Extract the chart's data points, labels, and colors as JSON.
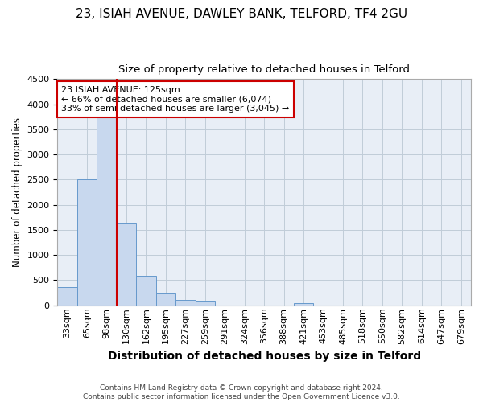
{
  "title1": "23, ISIAH AVENUE, DAWLEY BANK, TELFORD, TF4 2GU",
  "title2": "Size of property relative to detached houses in Telford",
  "xlabel": "Distribution of detached houses by size in Telford",
  "ylabel": "Number of detached properties",
  "categories": [
    "33sqm",
    "65sqm",
    "98sqm",
    "130sqm",
    "162sqm",
    "195sqm",
    "227sqm",
    "259sqm",
    "291sqm",
    "324sqm",
    "356sqm",
    "388sqm",
    "421sqm",
    "453sqm",
    "485sqm",
    "518sqm",
    "550sqm",
    "582sqm",
    "614sqm",
    "647sqm",
    "679sqm"
  ],
  "values": [
    370,
    2500,
    3750,
    1640,
    590,
    230,
    110,
    70,
    0,
    0,
    0,
    0,
    50,
    0,
    0,
    0,
    0,
    0,
    0,
    0,
    0
  ],
  "bar_color": "#c8d8ee",
  "bar_edge_color": "#6699cc",
  "vline_color": "#cc0000",
  "vline_x": 2.5,
  "ylim_max": 4500,
  "yticks": [
    0,
    500,
    1000,
    1500,
    2000,
    2500,
    3000,
    3500,
    4000,
    4500
  ],
  "annotation_line1": "23 ISIAH AVENUE: 125sqm",
  "annotation_line2": "← 66% of detached houses are smaller (6,074)",
  "annotation_line3": "33% of semi-detached houses are larger (3,045) →",
  "annotation_box_color": "#ffffff",
  "annotation_box_edge": "#cc0000",
  "footer_line1": "Contains HM Land Registry data © Crown copyright and database right 2024.",
  "footer_line2": "Contains public sector information licensed under the Open Government Licence v3.0.",
  "bg_color": "#e8eef6",
  "grid_color": "#c0ccd8",
  "title1_fontsize": 11,
  "title2_fontsize": 9.5,
  "xlabel_fontsize": 10,
  "ylabel_fontsize": 8.5,
  "tick_fontsize": 8,
  "footer_fontsize": 6.5,
  "annot_fontsize": 8
}
